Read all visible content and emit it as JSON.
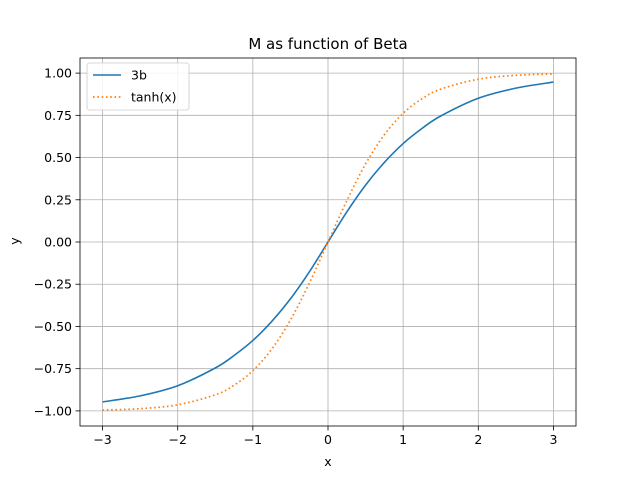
{
  "chart_data": {
    "type": "line",
    "title": "M as function of Beta",
    "xlabel": "x",
    "ylabel": "y",
    "xlim": [
      -3.3,
      3.3
    ],
    "ylim": [
      -1.0895,
      1.0895
    ],
    "grid": true,
    "legend_position": "top-left",
    "xticks": [
      -3,
      -2,
      -1,
      0,
      1,
      2,
      3
    ],
    "xtick_labels": [
      "−3",
      "−2",
      "−1",
      "0",
      "1",
      "2",
      "3"
    ],
    "yticks": [
      -1.0,
      -0.75,
      -0.5,
      -0.25,
      0.0,
      0.25,
      0.5,
      0.75,
      1.0
    ],
    "ytick_labels": [
      "−1.00",
      "−0.75",
      "−0.50",
      "−0.25",
      "0.00",
      "0.25",
      "0.50",
      "0.75",
      "1.00"
    ],
    "x": [
      -3.0,
      -2.5,
      -2.0,
      -1.5,
      -1.25,
      -1.0,
      -0.75,
      -0.5,
      -0.25,
      0.0,
      0.25,
      0.5,
      0.75,
      1.0,
      1.25,
      1.5,
      2.0,
      2.5,
      3.0
    ],
    "series": [
      {
        "name": "3b",
        "color": "#1f77b4",
        "style": "solid",
        "values": [
          -0.947,
          -0.911,
          -0.851,
          -0.746,
          -0.672,
          -0.583,
          -0.471,
          -0.337,
          -0.178,
          0.0,
          0.178,
          0.337,
          0.471,
          0.583,
          0.672,
          0.746,
          0.851,
          0.911,
          0.947
        ]
      },
      {
        "name": "tanh(x)",
        "color": "#ff7f0e",
        "style": "dotted",
        "values": [
          -0.995,
          -0.987,
          -0.964,
          -0.905,
          -0.848,
          -0.762,
          -0.635,
          -0.462,
          -0.245,
          0.0,
          0.245,
          0.462,
          0.635,
          0.762,
          0.848,
          0.905,
          0.964,
          0.987,
          0.995
        ]
      }
    ]
  }
}
